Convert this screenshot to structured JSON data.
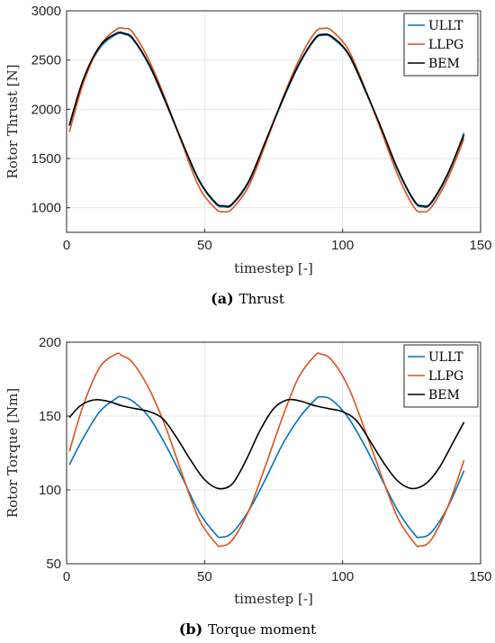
{
  "chart_data": [
    {
      "type": "line",
      "panel_letter": "a",
      "caption": "Thrust",
      "xlabel": "timestep [-]",
      "ylabel": "Rotor Thrust [N]",
      "xlim": [
        0,
        150
      ],
      "ylim": [
        750,
        3000
      ],
      "xticks": [
        0,
        50,
        100,
        150
      ],
      "yticks": [
        1000,
        1500,
        2000,
        2500,
        3000
      ],
      "grid": true,
      "legend_position": "top-right",
      "series": [
        {
          "name": "ULLT",
          "color": "#0072BD",
          "x": [
            1,
            6,
            12,
            18,
            21,
            24,
            30,
            36,
            42,
            48,
            54,
            57,
            60,
            66,
            72,
            78,
            84,
            90,
            93,
            96,
            102,
            108,
            114,
            120,
            126,
            129,
            132,
            138,
            144
          ],
          "y": [
            1830,
            2290,
            2620,
            2760,
            2760,
            2710,
            2440,
            2060,
            1650,
            1270,
            1040,
            1010,
            1030,
            1260,
            1660,
            2070,
            2440,
            2710,
            2750,
            2730,
            2560,
            2200,
            1800,
            1380,
            1060,
            1010,
            1040,
            1330,
            1760
          ]
        },
        {
          "name": "LLPG",
          "color": "#D95319",
          "x": [
            1,
            6,
            12,
            18,
            21,
            24,
            30,
            36,
            42,
            48,
            54,
            57,
            60,
            66,
            72,
            78,
            84,
            90,
            93,
            96,
            102,
            108,
            114,
            120,
            126,
            129,
            132,
            138,
            144
          ],
          "y": [
            1770,
            2260,
            2640,
            2810,
            2820,
            2780,
            2490,
            2090,
            1640,
            1210,
            990,
            960,
            990,
            1220,
            1640,
            2090,
            2490,
            2780,
            2820,
            2800,
            2610,
            2220,
            1780,
            1330,
            1000,
            960,
            1000,
            1290,
            1700
          ]
        },
        {
          "name": "BEM",
          "color": "#000000",
          "x": [
            1,
            6,
            12,
            18,
            21,
            24,
            30,
            36,
            42,
            48,
            54,
            57,
            60,
            66,
            72,
            78,
            84,
            90,
            93,
            96,
            102,
            108,
            114,
            120,
            126,
            129,
            132,
            138,
            144
          ],
          "y": [
            1840,
            2300,
            2640,
            2770,
            2770,
            2720,
            2450,
            2070,
            1660,
            1280,
            1050,
            1020,
            1040,
            1270,
            1670,
            2080,
            2450,
            2720,
            2760,
            2740,
            2570,
            2210,
            1810,
            1390,
            1070,
            1020,
            1050,
            1340,
            1740
          ]
        }
      ]
    },
    {
      "type": "line",
      "panel_letter": "b",
      "caption": "Torque moment",
      "xlabel": "timestep [-]",
      "ylabel": "Rotor Torque [Nm]",
      "xlim": [
        0,
        150
      ],
      "ylim": [
        50,
        200
      ],
      "xticks": [
        0,
        50,
        100,
        150
      ],
      "yticks": [
        50,
        100,
        150,
        200
      ],
      "grid": true,
      "legend_position": "top-right",
      "series": [
        {
          "name": "ULLT",
          "color": "#0072BD",
          "x": [
            1,
            6,
            12,
            18,
            20,
            24,
            30,
            36,
            42,
            48,
            54,
            56,
            60,
            66,
            72,
            78,
            84,
            90,
            92,
            96,
            102,
            108,
            114,
            120,
            126,
            128,
            132,
            138,
            144
          ],
          "y": [
            117,
            135,
            153,
            162,
            163,
            160,
            149,
            130,
            108,
            85,
            70,
            68,
            71,
            86,
            107,
            130,
            148,
            161,
            163,
            161,
            149,
            130,
            108,
            86,
            70,
            68,
            71,
            88,
            113
          ]
        },
        {
          "name": "LLPG",
          "color": "#D95319",
          "x": [
            1,
            6,
            12,
            18,
            20,
            24,
            30,
            36,
            42,
            48,
            54,
            56,
            60,
            66,
            72,
            78,
            84,
            90,
            92,
            96,
            102,
            108,
            114,
            120,
            126,
            128,
            132,
            138,
            144
          ],
          "y": [
            126,
            157,
            183,
            192,
            191,
            186,
            168,
            142,
            110,
            80,
            64,
            62,
            66,
            86,
            116,
            148,
            176,
            191,
            192,
            188,
            170,
            141,
            110,
            81,
            64,
            62,
            66,
            88,
            120
          ]
        },
        {
          "name": "BEM",
          "color": "#000000",
          "x": [
            1,
            5,
            10,
            15,
            20,
            25,
            30,
            35,
            40,
            45,
            50,
            55,
            60,
            65,
            70,
            75,
            80,
            85,
            90,
            95,
            100,
            105,
            110,
            115,
            120,
            125,
            130,
            135,
            140,
            144
          ],
          "y": [
            149,
            157,
            161,
            160,
            157,
            155,
            153,
            148,
            135,
            120,
            107,
            101,
            104,
            120,
            140,
            155,
            161,
            160,
            157,
            155,
            153,
            147,
            133,
            118,
            106,
            101,
            104,
            115,
            132,
            146
          ]
        }
      ]
    }
  ]
}
